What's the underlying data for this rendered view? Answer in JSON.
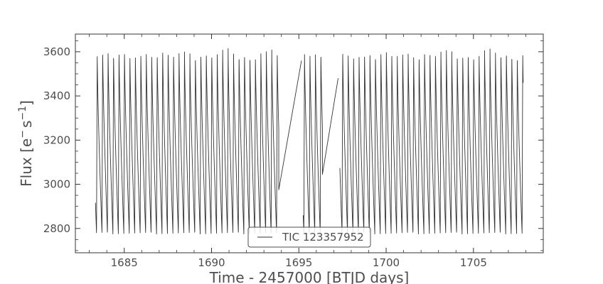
{
  "chart_data": {
    "type": "line",
    "xlabel": "Time - 2457000 [BTJD days]",
    "ylabel_main": "Flux [e",
    "ylabel_sup1": "−",
    "ylabel_mid": "s",
    "ylabel_sup2": "−1",
    "ylabel_end": "]",
    "xlim": [
      1682.2,
      1709.0
    ],
    "ylim": [
      2690,
      3680
    ],
    "xticks": [
      1685,
      1690,
      1695,
      1700,
      1705
    ],
    "yticks": [
      2800,
      3000,
      3200,
      3400,
      3600
    ],
    "legend": {
      "placement": "bottom-center",
      "entries": [
        "TIC 123357952"
      ]
    },
    "grid": false,
    "series": [
      {
        "name": "TIC 123357952",
        "color": "#333333",
        "model": {
          "period_days": 0.3125,
          "x_start": 1683.35,
          "first_max": 1683.45,
          "max_flux": 3595,
          "min_flux": 2775,
          "segments": [
            [
              1683.35,
              1693.85
            ],
            [
              1695.25,
              1696.35
            ],
            [
              1697.35,
              1707.85
            ]
          ],
          "bridges": [
            [
              [
                1693.85,
                2975
              ],
              [
                1695.15,
                3560
              ]
            ],
            [
              [
                1696.35,
                3045
              ],
              [
                1697.25,
                3480
              ]
            ]
          ]
        }
      }
    ]
  }
}
